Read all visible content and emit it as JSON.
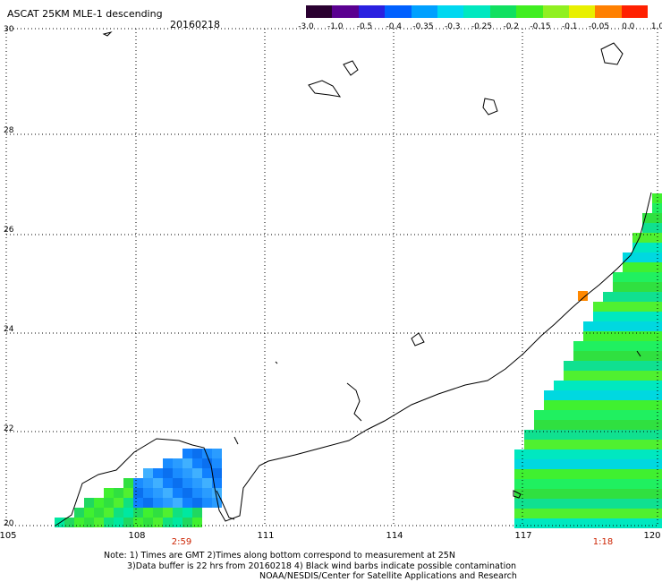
{
  "header": {
    "title": "ASCAT 25KM MLE-1 descending",
    "date": "20160218"
  },
  "colorbar": {
    "labels": [
      "-3.0",
      "-1.0",
      "-0.5",
      "-0.4",
      "-0.35",
      "-0.3",
      "-0.25",
      "-0.2",
      "-0.15",
      "-0.1",
      "-0.05",
      "0.0",
      "1.0"
    ],
    "colors": [
      "#2a0030",
      "#5a0090",
      "#2a20e0",
      "#0060ff",
      "#00a0ff",
      "#00d8f0",
      "#00e8c0",
      "#10e060",
      "#40ee20",
      "#90f020",
      "#e8f000",
      "#ff8000",
      "#ff2000"
    ]
  },
  "map": {
    "lat_labels": [
      "30",
      "28",
      "26",
      "24",
      "22",
      "20"
    ],
    "lon_labels": [
      "105",
      "108",
      "111",
      "114",
      "117",
      "120"
    ],
    "pass_times": [
      "2:59",
      "1:18"
    ]
  },
  "notes": [
    "Note: 1) Times are GMT 2)Times along bottom correspond to measurement at 25N",
    "3)Data buffer is 22 hrs from 20160218 4) Black wind barbs indicate possible contamination",
    "NOAA/NESDIS/Center for Satellite Applications and Research"
  ]
}
